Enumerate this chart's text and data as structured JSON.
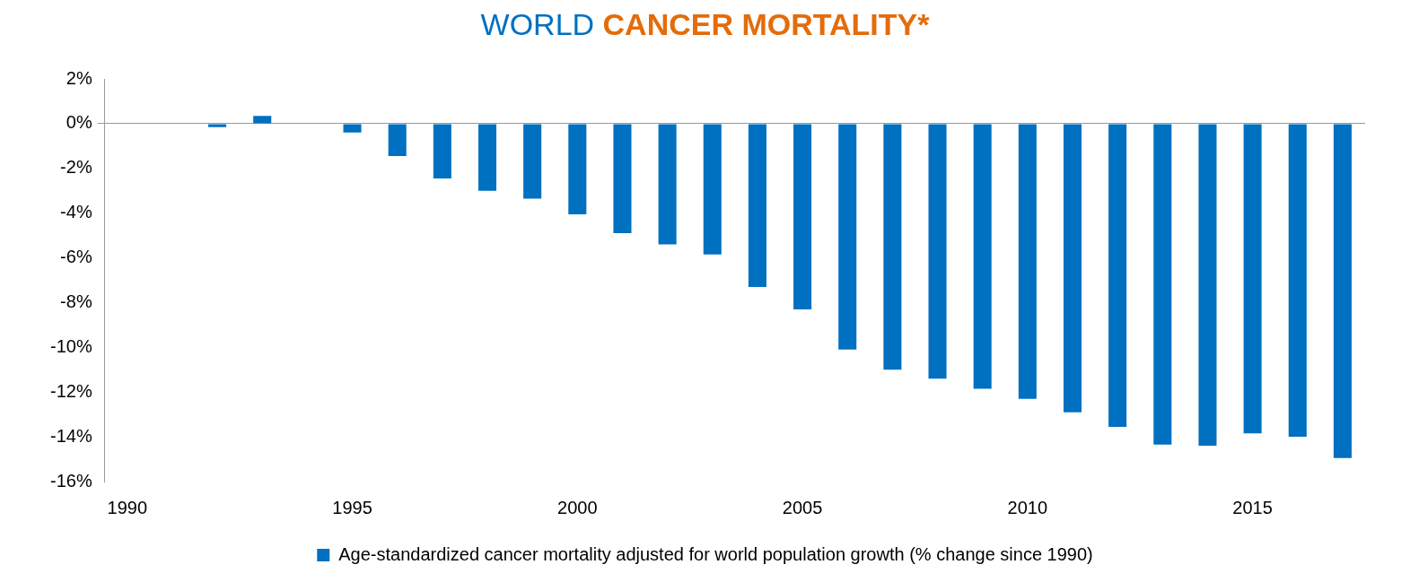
{
  "chart_data": {
    "type": "bar",
    "title": "WORLD CANCER MORTALITY*",
    "categories": [
      "1990",
      null,
      null,
      null,
      null,
      "1995",
      null,
      null,
      null,
      null,
      "2000",
      null,
      null,
      null,
      null,
      "2005",
      null,
      null,
      null,
      null,
      "2010",
      null,
      null,
      null,
      null,
      "2015",
      null,
      null
    ],
    "series": [
      {
        "name": "Age-standardized cancer mortality adjusted for world population growth (% change since 1990)",
        "color": "#0070c0",
        "values": [
          0,
          -0.02,
          -0.15,
          0.35,
          0,
          -0.4,
          -1.45,
          -2.45,
          -3.0,
          -3.35,
          -4.05,
          -4.9,
          -5.4,
          -5.85,
          -7.3,
          -8.3,
          -10.1,
          -11.0,
          -11.4,
          -11.85,
          -12.3,
          -12.9,
          -13.55,
          -14.35,
          -14.4,
          -13.85,
          -14.0,
          -14.95
        ]
      }
    ],
    "ylim": [
      -16,
      2
    ],
    "yticks": [
      {
        "value": -16,
        "label": "-16%"
      },
      {
        "value": -14,
        "label": "-14%"
      },
      {
        "value": -12,
        "label": "-12%"
      },
      {
        "value": -10,
        "label": "-10%"
      },
      {
        "value": -8,
        "label": "-8%"
      },
      {
        "value": -6,
        "label": "-6%"
      },
      {
        "value": -4,
        "label": "-4%"
      },
      {
        "value": -2,
        "label": "-2%"
      },
      {
        "value": 0,
        "label": "0%"
      },
      {
        "value": 2,
        "label": "2%"
      }
    ],
    "legend": "bottom"
  }
}
